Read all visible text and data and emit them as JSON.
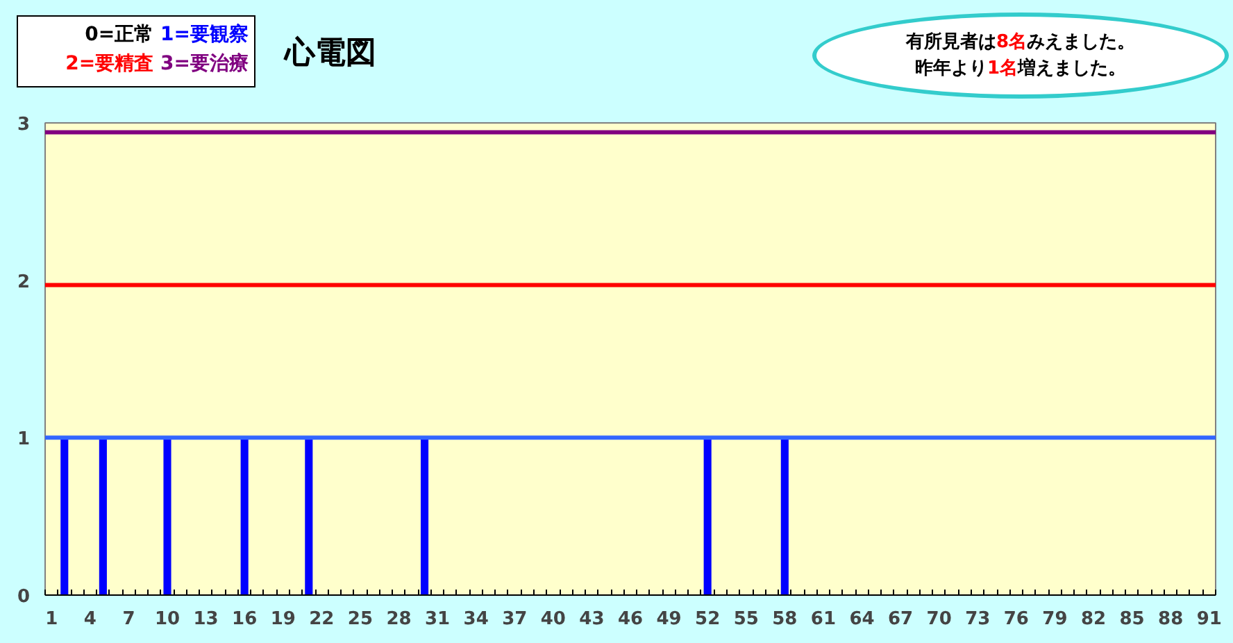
{
  "chart_data": {
    "type": "bar",
    "title": "心電図",
    "categories": [
      "1",
      null,
      null,
      "4",
      null,
      null,
      "7",
      null,
      null,
      "10",
      null,
      null,
      "13",
      null,
      null,
      "16",
      null,
      null,
      "19",
      null,
      null,
      "22",
      null,
      null,
      "25",
      null,
      null,
      "28",
      null,
      null,
      "31",
      null,
      null,
      "34",
      null,
      null,
      "37",
      null,
      null,
      "40",
      null,
      null,
      "43",
      null,
      null,
      "46",
      null,
      null,
      "49",
      null,
      null,
      "52",
      null,
      null,
      "55",
      null,
      null,
      "58",
      null,
      null,
      "61",
      null,
      null,
      "64",
      null,
      null,
      "67",
      null,
      null,
      "70",
      null,
      null,
      "73",
      null,
      null,
      "76",
      null,
      null,
      "79",
      null,
      null,
      "82",
      null,
      null,
      "85",
      null,
      null,
      "88",
      null,
      null,
      "91"
    ],
    "values": [
      0,
      1,
      0,
      0,
      1,
      0,
      0,
      0,
      0,
      1,
      0,
      0,
      0,
      0,
      0,
      1,
      0,
      0,
      0,
      0,
      1,
      0,
      0,
      0,
      0,
      0,
      0,
      0,
      0,
      1,
      0,
      0,
      0,
      0,
      0,
      0,
      0,
      0,
      0,
      0,
      0,
      0,
      0,
      0,
      0,
      0,
      0,
      0,
      0,
      0,
      0,
      1,
      0,
      0,
      0,
      0,
      0,
      1,
      0,
      0,
      0,
      0,
      0,
      0,
      0,
      0,
      0,
      0,
      0,
      0,
      0,
      0,
      0,
      0,
      0,
      0,
      0,
      0,
      0,
      0,
      0,
      0,
      0,
      0,
      0,
      0,
      0,
      0,
      0,
      0,
      0
    ],
    "color": "#0000ff",
    "ylim": [
      0,
      3
    ],
    "yticks": [
      0,
      1,
      2,
      3
    ],
    "ref_lines": [
      {
        "axis": "y",
        "value": 1,
        "color": "#3366ff"
      },
      {
        "axis": "y",
        "value": 1.97,
        "color": "#ff0000"
      },
      {
        "axis": "y",
        "value": 2.94,
        "color": "#800080"
      }
    ],
    "annotations": [
      "0=正常",
      "1=要観察",
      "2=要精査",
      "3=要治療",
      "有所見者は8名みえました。",
      "昨年より1名増えました。"
    ]
  }
}
